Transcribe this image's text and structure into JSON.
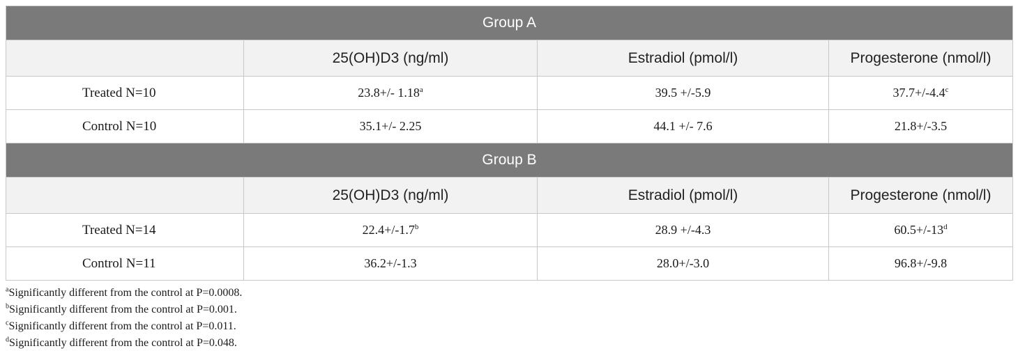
{
  "column_headers": [
    "",
    "25(OH)D3 (ng/ml)",
    "Estradiol (pmol/l)",
    "Progesterone (nmol/l)"
  ],
  "groups": [
    {
      "title": "Group A",
      "rows": [
        {
          "label": "Treated N=10",
          "cells": [
            {
              "value": "23.8+/- 1.18",
              "sup": "a"
            },
            {
              "value": "39.5 +/-5.9",
              "sup": ""
            },
            {
              "value": "37.7+/-4.4",
              "sup": "c"
            }
          ]
        },
        {
          "label": "Control N=10",
          "cells": [
            {
              "value": "35.1+/- 2.25",
              "sup": ""
            },
            {
              "value": "44.1 +/- 7.6",
              "sup": ""
            },
            {
              "value": "21.8+/-3.5",
              "sup": ""
            }
          ]
        }
      ]
    },
    {
      "title": "Group B",
      "rows": [
        {
          "label": "Treated N=14",
          "cells": [
            {
              "value": "22.4+/-1.7",
              "sup": "b"
            },
            {
              "value": "28.9 +/-4.3",
              "sup": ""
            },
            {
              "value": "60.5+/-13",
              "sup": "d"
            }
          ]
        },
        {
          "label": "Control N=11",
          "cells": [
            {
              "value": "36.2+/-1.3",
              "sup": ""
            },
            {
              "value": "28.0+/-3.0",
              "sup": ""
            },
            {
              "value": "96.8+/-9.8",
              "sup": ""
            }
          ]
        }
      ]
    }
  ],
  "footnotes": [
    {
      "mark": "a",
      "text": "Significantly different from the control at P=0.0008."
    },
    {
      "mark": "b",
      "text": "Significantly different from the control at P=0.001."
    },
    {
      "mark": "c",
      "text": "Significantly different from the control at P=0.011."
    },
    {
      "mark": "d",
      "text": "Significantly different from the control at P=0.048."
    }
  ]
}
